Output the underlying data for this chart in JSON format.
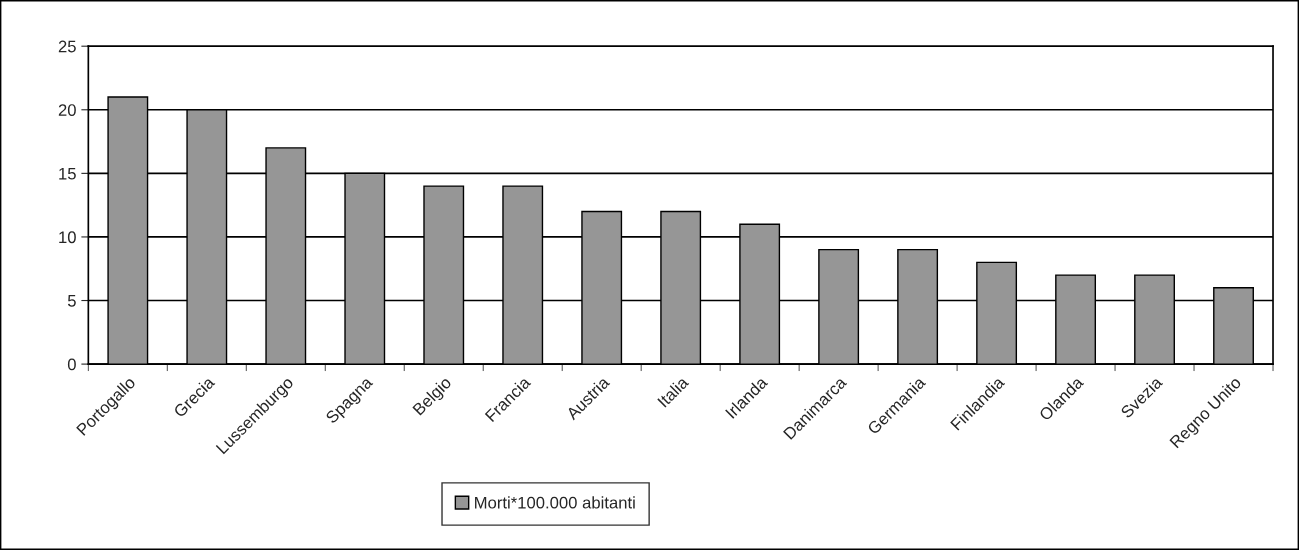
{
  "chart_data": {
    "type": "bar",
    "categories": [
      "Portogallo",
      "Grecia",
      "Lussemburgo",
      "Spagna",
      "Belgio",
      "Francia",
      "Austria",
      "Italia",
      "Irlanda",
      "Danimarca",
      "Germania",
      "Finlandia",
      "Olanda",
      "Svezia",
      "Regno Unito"
    ],
    "series": [
      {
        "name": "Morti*100.000 abitanti",
        "color": "#969696",
        "values": [
          21,
          20,
          17,
          15,
          14,
          14,
          12,
          12,
          11,
          9,
          9,
          8,
          7,
          7,
          6
        ]
      }
    ],
    "ylim": [
      0,
      25
    ],
    "yticks": [
      0,
      5,
      10,
      15,
      20,
      25
    ],
    "grid": "y",
    "legend": "bottom"
  }
}
